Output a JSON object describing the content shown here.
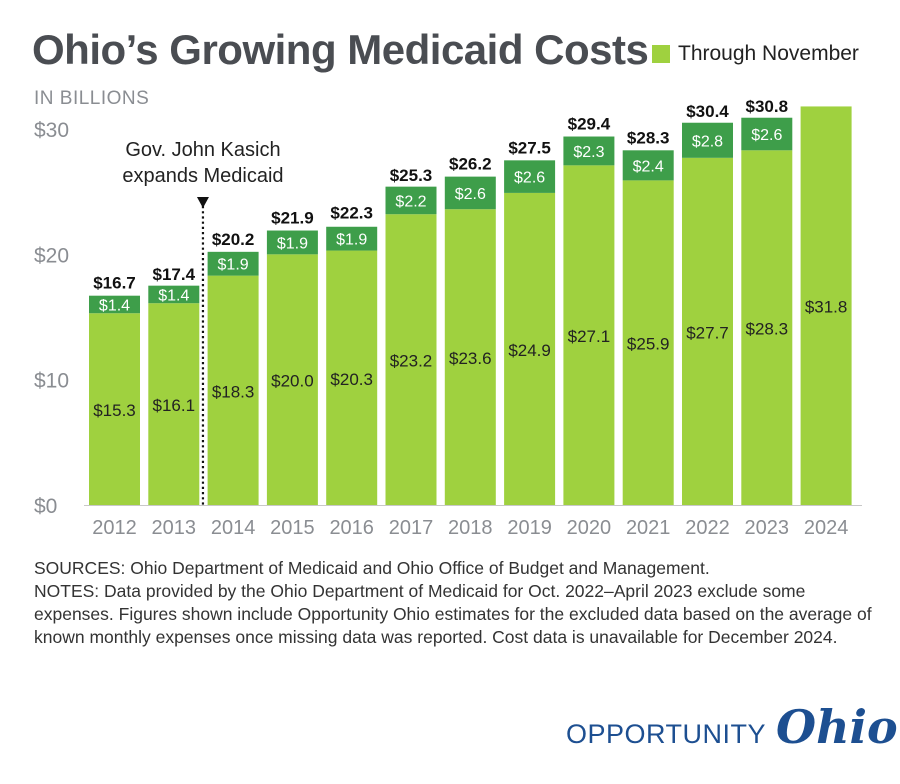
{
  "title": "Ohio’s Growing Medicaid Costs",
  "legend_label": "Through November",
  "unit_label": "IN BILLIONS",
  "annotation": [
    "Gov. John Kasich",
    "expands Medicaid"
  ],
  "colors": {
    "light": "#9fd13f",
    "dark": "#3e9e4a",
    "axis": "#8a8d92"
  },
  "notes": {
    "sources": "SOURCES: Ohio Department of Medicaid and Ohio Office of Budget and Management.",
    "notes": "NOTES: Data provided by the Ohio Department of Medicaid for Oct. 2022–April 2023 exclude some expenses. Figures shown include Opportunity Ohio estimates for the excluded data based on the average of known monthly expenses once missing data was reported. Cost data is unavailable for December 2024."
  },
  "logo": {
    "word": "OPPORTUNITY",
    "script": "Ohio"
  },
  "chart_data": {
    "type": "bar",
    "stacked": true,
    "categories": [
      "2012",
      "2013",
      "2014",
      "2015",
      "2016",
      "2017",
      "2018",
      "2019",
      "2020",
      "2021",
      "2022",
      "2023",
      "2024"
    ],
    "series": [
      {
        "name": "Through November",
        "values": [
          15.3,
          16.1,
          18.3,
          20.0,
          20.3,
          23.2,
          23.6,
          24.9,
          27.1,
          25.9,
          27.7,
          28.3,
          31.8
        ],
        "labels": [
          "$15.3",
          "$16.1",
          "$18.3",
          "$20.0",
          "$20.3",
          "$23.2",
          "$23.6",
          "$24.9",
          "$27.1",
          "$25.9",
          "$27.7",
          "$28.3",
          "$31.8"
        ]
      },
      {
        "values": [
          1.4,
          1.4,
          1.9,
          1.9,
          1.9,
          2.2,
          2.6,
          2.6,
          2.3,
          2.4,
          2.8,
          2.6,
          null
        ],
        "labels": [
          "$1.4",
          "$1.4",
          "$1.9",
          "$1.9",
          "$1.9",
          "$2.2",
          "$2.6",
          "$2.6",
          "$2.3",
          "$2.4",
          "$2.8",
          "$2.6",
          ""
        ]
      }
    ],
    "totals": [
      16.7,
      17.4,
      20.2,
      21.9,
      22.3,
      25.3,
      26.2,
      27.5,
      29.4,
      28.3,
      30.4,
      30.8,
      null
    ],
    "total_labels": [
      "$16.7",
      "$17.4",
      "$20.2",
      "$21.9",
      "$22.3",
      "$25.3",
      "$26.2",
      "$27.5",
      "$29.4",
      "$28.3",
      "$30.4",
      "$30.8",
      ""
    ],
    "y_ticks": [
      0,
      10,
      20,
      30
    ],
    "y_tick_labels": [
      "$0",
      "$10",
      "$20",
      "$30"
    ],
    "ylim": [
      0,
      30
    ],
    "annotation_between": [
      "2013",
      "2014"
    ],
    "grid": false,
    "legend": "top-right"
  }
}
